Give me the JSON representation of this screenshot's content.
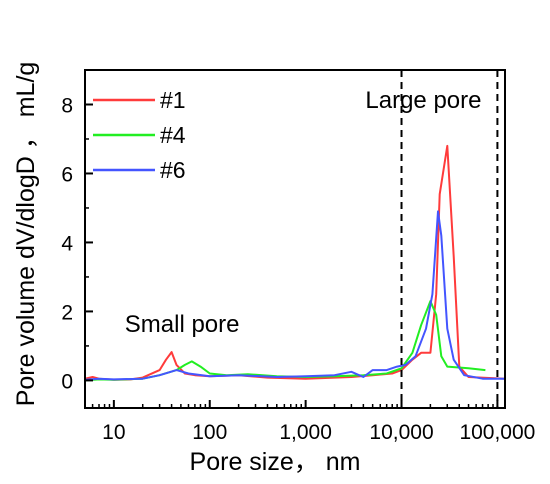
{
  "chart_data": {
    "type": "line",
    "title": "",
    "xlabel": "Pore size， nm",
    "ylabel": "Pore volume dV/dlogD ， mL/g",
    "x_scale": "log",
    "xlim": [
      5,
      120000
    ],
    "ylim": [
      -0.8,
      9
    ],
    "x_ticks": [
      10,
      100,
      1000,
      10000,
      100000
    ],
    "x_tick_labels": [
      "10",
      "100",
      "1,000",
      "10,000",
      "100,000"
    ],
    "y_ticks": [
      0,
      2,
      4,
      6,
      8
    ],
    "y_tick_labels": [
      "0",
      "2",
      "4",
      "6",
      "8"
    ],
    "grid": false,
    "legend_position": "top-left",
    "series": [
      {
        "name": "#1",
        "color": "#ff3b3b",
        "points": [
          [
            5,
            0.05
          ],
          [
            6,
            0.1
          ],
          [
            7,
            0.05
          ],
          [
            10,
            0.02
          ],
          [
            15,
            0.03
          ],
          [
            20,
            0.08
          ],
          [
            30,
            0.3
          ],
          [
            35,
            0.6
          ],
          [
            40,
            0.82
          ],
          [
            45,
            0.45
          ],
          [
            55,
            0.2
          ],
          [
            70,
            0.15
          ],
          [
            100,
            0.12
          ],
          [
            200,
            0.15
          ],
          [
            400,
            0.08
          ],
          [
            1000,
            0.05
          ],
          [
            3000,
            0.1
          ],
          [
            5000,
            0.15
          ],
          [
            8000,
            0.2
          ],
          [
            10000,
            0.3
          ],
          [
            13000,
            0.6
          ],
          [
            16000,
            0.8
          ],
          [
            20000,
            0.8
          ],
          [
            23000,
            2.5
          ],
          [
            25000,
            5.4
          ],
          [
            30000,
            6.8
          ],
          [
            35000,
            3.6
          ],
          [
            40000,
            0.4
          ],
          [
            50000,
            0.1
          ],
          [
            120000,
            0.05
          ]
        ]
      },
      {
        "name": "#4",
        "color": "#22ee22",
        "points": [
          [
            5,
            0.0
          ],
          [
            7,
            0.03
          ],
          [
            10,
            0.02
          ],
          [
            20,
            0.05
          ],
          [
            30,
            0.15
          ],
          [
            45,
            0.3
          ],
          [
            55,
            0.45
          ],
          [
            65,
            0.55
          ],
          [
            80,
            0.4
          ],
          [
            100,
            0.2
          ],
          [
            150,
            0.15
          ],
          [
            250,
            0.18
          ],
          [
            500,
            0.12
          ],
          [
            1000,
            0.1
          ],
          [
            2000,
            0.12
          ],
          [
            4000,
            0.15
          ],
          [
            7000,
            0.2
          ],
          [
            10000,
            0.35
          ],
          [
            13000,
            0.8
          ],
          [
            16000,
            1.6
          ],
          [
            20000,
            2.3
          ],
          [
            23000,
            1.9
          ],
          [
            26000,
            0.7
          ],
          [
            30000,
            0.4
          ],
          [
            50000,
            0.35
          ],
          [
            75000,
            0.3
          ]
        ]
      },
      {
        "name": "#6",
        "color": "#4455ff",
        "points": [
          [
            5,
            0.02
          ],
          [
            7,
            0.05
          ],
          [
            10,
            0.03
          ],
          [
            20,
            0.05
          ],
          [
            30,
            0.15
          ],
          [
            45,
            0.3
          ],
          [
            60,
            0.2
          ],
          [
            100,
            0.12
          ],
          [
            200,
            0.15
          ],
          [
            500,
            0.1
          ],
          [
            1000,
            0.12
          ],
          [
            2000,
            0.15
          ],
          [
            3000,
            0.25
          ],
          [
            4000,
            0.1
          ],
          [
            5000,
            0.3
          ],
          [
            7000,
            0.3
          ],
          [
            9000,
            0.4
          ],
          [
            11000,
            0.45
          ],
          [
            14000,
            0.7
          ],
          [
            18000,
            1.5
          ],
          [
            21000,
            2.5
          ],
          [
            24000,
            4.9
          ],
          [
            26000,
            4.2
          ],
          [
            30000,
            1.5
          ],
          [
            35000,
            0.6
          ],
          [
            45000,
            0.15
          ],
          [
            70000,
            0.05
          ],
          [
            120000,
            0.05
          ]
        ]
      }
    ],
    "reference_lines_x": [
      10000,
      100000
    ],
    "annotations": [
      {
        "text": "Large pore",
        "x": 4200,
        "y": 7.9
      },
      {
        "text": "Small pore",
        "x": 13,
        "y": 1.4
      }
    ]
  }
}
